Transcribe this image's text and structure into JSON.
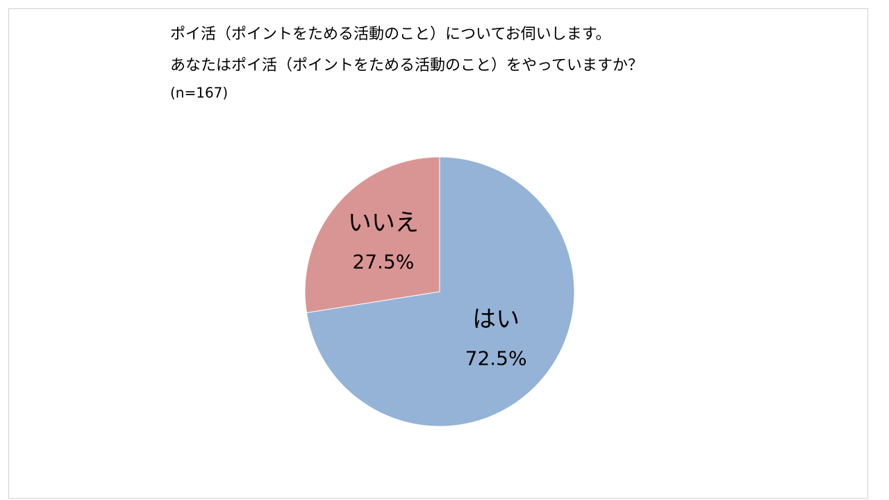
{
  "chart_data": {
    "type": "pie",
    "title": "ポイ活（ポイントをためる活動のこと）についてお伺いします。",
    "subtitle": "あなたはポイ活（ポイントをためる活動のこと）をやっていますか？",
    "note": "(n=167)",
    "categories": [
      "はい",
      "いいえ"
    ],
    "values": [
      72.5,
      27.5
    ],
    "value_labels": [
      "72.5%",
      "27.5%"
    ],
    "colors": [
      "#95b3d7",
      "#d99594"
    ]
  }
}
